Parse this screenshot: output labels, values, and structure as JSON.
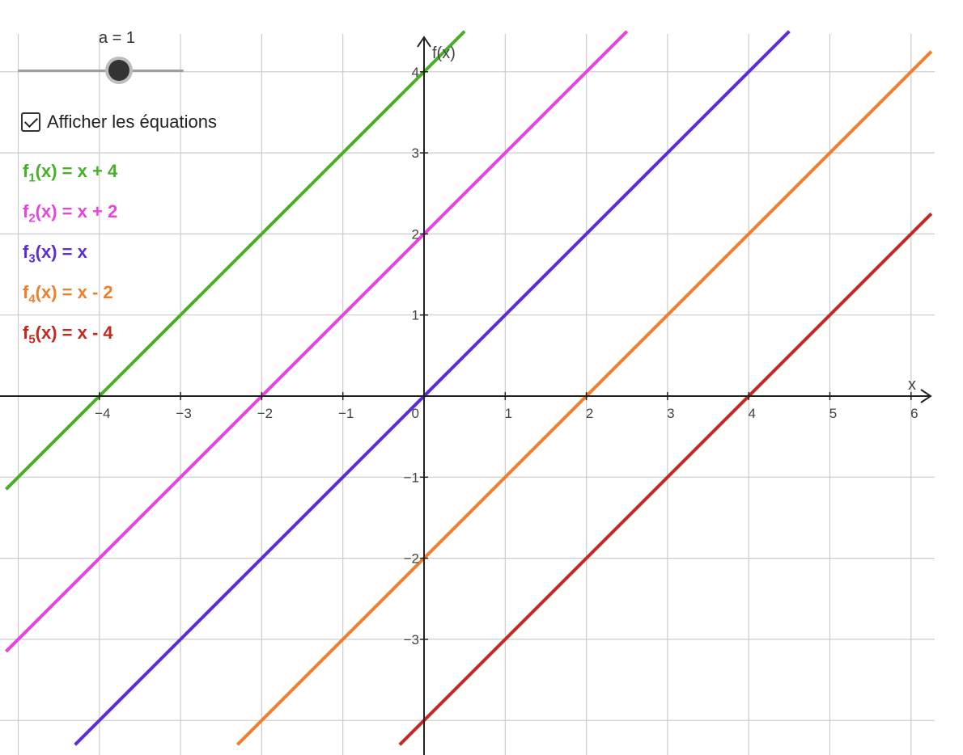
{
  "slider": {
    "label": "a = 1",
    "value": 1
  },
  "checkbox": {
    "label": "Afficher les équations",
    "checked": true
  },
  "equations": [
    {
      "fname": "f",
      "index": "1",
      "expr": "(x) = x + 4",
      "color": "#46b125"
    },
    {
      "fname": "f",
      "index": "2",
      "expr": "(x) = x + 2",
      "color": "#ea43dd"
    },
    {
      "fname": "f",
      "index": "3",
      "expr": "(x) = x",
      "color": "#5b2dd6"
    },
    {
      "fname": "f",
      "index": "4",
      "expr": "(x) = x - 2",
      "color": "#f07e2b"
    },
    {
      "fname": "f",
      "index": "5",
      "expr": "(x) = x - 4",
      "color": "#c4281f"
    }
  ],
  "chart_data": {
    "type": "line",
    "xlabel": "x",
    "ylabel": "f(x)",
    "xlim": [
      -5.15,
      6.25
    ],
    "ylim": [
      -4.3,
      4.5
    ],
    "x_ticks": [
      -4,
      -3,
      -2,
      -1,
      1,
      2,
      3,
      4,
      5,
      6
    ],
    "x_tick_labels": [
      "−4",
      "−3",
      "−2",
      "−1",
      "1",
      "2",
      "3",
      "4",
      "5",
      "6"
    ],
    "y_ticks": [
      -3,
      -2,
      -1,
      1,
      2,
      3,
      4
    ],
    "y_tick_labels": [
      "−3",
      "−2",
      "−1",
      "1",
      "2",
      "3",
      "4"
    ],
    "origin_label": "0",
    "grid": true,
    "series": [
      {
        "slope": 1,
        "intercept": 4,
        "color": "#46b125"
      },
      {
        "slope": 1,
        "intercept": 2,
        "color": "#ea43dd"
      },
      {
        "slope": 1,
        "intercept": 0,
        "color": "#5b2dd6"
      },
      {
        "slope": 1,
        "intercept": -2,
        "color": "#f07e2b"
      },
      {
        "slope": 1,
        "intercept": -4,
        "color": "#c4281f"
      }
    ]
  }
}
